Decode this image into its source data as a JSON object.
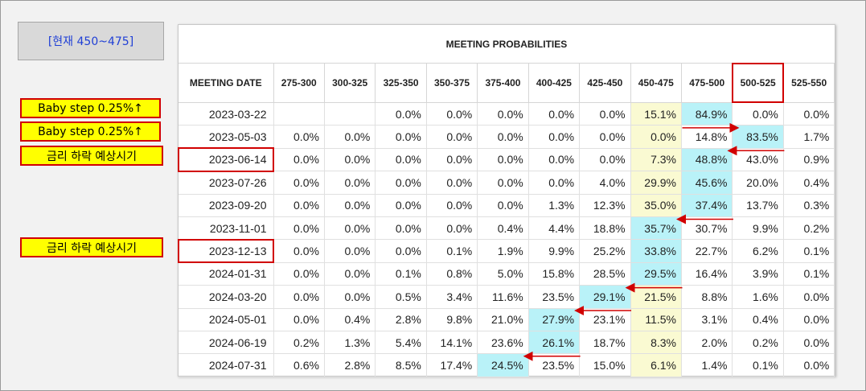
{
  "current_label": "[현재 450~475]",
  "notes": [
    "Baby step 0.25%↑",
    "Baby step 0.25%↑",
    "금리 하락 예상시기",
    "금리 하락 예상시기"
  ],
  "table": {
    "title": "MEETING PROBABILITIES",
    "headers": [
      "MEETING DATE",
      "275-300",
      "300-325",
      "325-350",
      "350-375",
      "375-400",
      "400-425",
      "425-450",
      "450-475",
      "475-500",
      "500-525",
      "525-550"
    ],
    "rows": [
      {
        "date": "2023-03-22",
        "values": [
          "",
          "",
          "0.0%",
          "0.0%",
          "0.0%",
          "0.0%",
          "0.0%",
          "15.1%",
          "84.9%",
          "0.0%",
          "0.0%"
        ]
      },
      {
        "date": "2023-05-03",
        "values": [
          "0.0%",
          "0.0%",
          "0.0%",
          "0.0%",
          "0.0%",
          "0.0%",
          "0.0%",
          "0.0%",
          "14.8%",
          "83.5%",
          "1.7%"
        ]
      },
      {
        "date": "2023-06-14",
        "values": [
          "0.0%",
          "0.0%",
          "0.0%",
          "0.0%",
          "0.0%",
          "0.0%",
          "0.0%",
          "7.3%",
          "48.8%",
          "43.0%",
          "0.9%"
        ]
      },
      {
        "date": "2023-07-26",
        "values": [
          "0.0%",
          "0.0%",
          "0.0%",
          "0.0%",
          "0.0%",
          "0.0%",
          "4.0%",
          "29.9%",
          "45.6%",
          "20.0%",
          "0.4%"
        ]
      },
      {
        "date": "2023-09-20",
        "values": [
          "0.0%",
          "0.0%",
          "0.0%",
          "0.0%",
          "0.0%",
          "1.3%",
          "12.3%",
          "35.0%",
          "37.4%",
          "13.7%",
          "0.3%"
        ]
      },
      {
        "date": "2023-11-01",
        "values": [
          "0.0%",
          "0.0%",
          "0.0%",
          "0.0%",
          "0.4%",
          "4.4%",
          "18.8%",
          "35.7%",
          "30.7%",
          "9.9%",
          "0.2%"
        ]
      },
      {
        "date": "2023-12-13",
        "values": [
          "0.0%",
          "0.0%",
          "0.0%",
          "0.1%",
          "1.9%",
          "9.9%",
          "25.2%",
          "33.8%",
          "22.7%",
          "6.2%",
          "0.1%"
        ]
      },
      {
        "date": "2024-01-31",
        "values": [
          "0.0%",
          "0.0%",
          "0.1%",
          "0.8%",
          "5.0%",
          "15.8%",
          "28.5%",
          "29.5%",
          "16.4%",
          "3.9%",
          "0.1%"
        ]
      },
      {
        "date": "2024-03-20",
        "values": [
          "0.0%",
          "0.0%",
          "0.5%",
          "3.4%",
          "11.6%",
          "23.5%",
          "29.1%",
          "21.5%",
          "8.8%",
          "1.6%",
          "0.0%"
        ]
      },
      {
        "date": "2024-05-01",
        "values": [
          "0.0%",
          "0.4%",
          "2.8%",
          "9.8%",
          "21.0%",
          "27.9%",
          "23.1%",
          "11.5%",
          "3.1%",
          "0.4%",
          "0.0%"
        ]
      },
      {
        "date": "2024-06-19",
        "values": [
          "0.2%",
          "1.3%",
          "5.4%",
          "14.1%",
          "23.6%",
          "26.1%",
          "18.7%",
          "8.3%",
          "2.0%",
          "0.2%",
          "0.0%"
        ]
      },
      {
        "date": "2024-07-31",
        "values": [
          "0.6%",
          "2.8%",
          "8.5%",
          "17.4%",
          "24.5%",
          "23.5%",
          "15.0%",
          "6.1%",
          "1.4%",
          "0.1%",
          "0.0%"
        ]
      }
    ],
    "current_col": 7,
    "max_col": [
      8,
      9,
      8,
      8,
      8,
      7,
      7,
      7,
      6,
      5,
      5,
      4
    ],
    "highlighted_header_col": 9,
    "highlighted_dates": [
      2,
      6
    ]
  },
  "colors": {
    "annotation_red": "#d10000",
    "note_yellow": "#ffff00",
    "current_cell": "#fafad2",
    "max_cell": "#b9f2f8",
    "label_blue": "#1f3fd6"
  }
}
